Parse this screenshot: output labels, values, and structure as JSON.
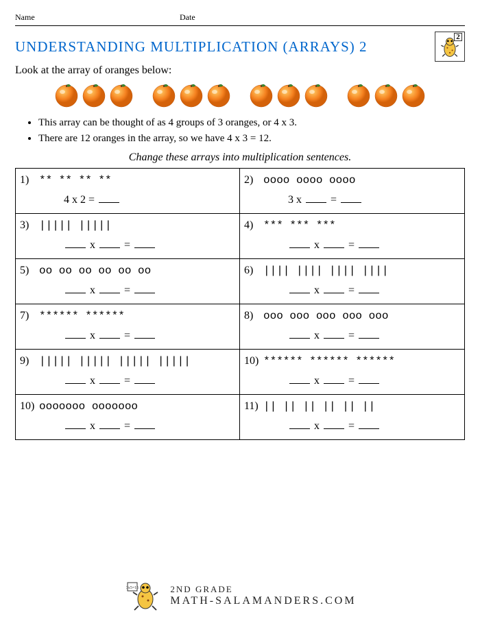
{
  "header": {
    "name_label": "Name",
    "date_label": "Date"
  },
  "title": "UNDERSTANDING MULTIPLICATION (ARRAYS) 2",
  "grade_badge": {
    "number": "2"
  },
  "intro": "Look at the array of oranges below:",
  "orange_array": {
    "groups": 4,
    "per_group": 3,
    "fill_color": "#f58220",
    "highlight_color": "#ffcc66",
    "leaf_color": "#3a8a2e"
  },
  "bullets": [
    "This array can be thought of as 4 groups of 3 oranges, or 4 x 3.",
    "There are 12 oranges in the array, so we have 4 x 3 = 12."
  ],
  "instruction": "Change these arrays into multiplication sentences.",
  "problems": [
    {
      "n": "1)",
      "array": "**   **   **   **",
      "eq": [
        "4",
        " x ",
        "2",
        " = ",
        "___"
      ]
    },
    {
      "n": "2)",
      "array": "oooo   oooo   oooo",
      "eq": [
        "3",
        " x ",
        "___",
        " = ",
        "___"
      ]
    },
    {
      "n": "3)",
      "array": "|||||   |||||",
      "eq": [
        "___",
        " x ",
        "___",
        " = ",
        "___"
      ]
    },
    {
      "n": "4)",
      "array": "***   ***   ***",
      "eq": [
        "___",
        " x ",
        "___",
        " = ",
        "___"
      ]
    },
    {
      "n": "5)",
      "array": "oo  oo  oo  oo  oo  oo",
      "eq": [
        "___",
        " x ",
        "___",
        " = ",
        "___"
      ]
    },
    {
      "n": "6)",
      "array": "||||  ||||  ||||  ||||",
      "eq": [
        "___",
        " x ",
        "___",
        " = ",
        "___"
      ]
    },
    {
      "n": "7)",
      "array": "******   ******",
      "eq": [
        "___",
        " x ",
        "___",
        " = ",
        "___"
      ]
    },
    {
      "n": "8)",
      "array": "ooo  ooo  ooo  ooo  ooo",
      "eq": [
        "___",
        " x ",
        "___",
        " = ",
        "___"
      ]
    },
    {
      "n": "9)",
      "array": "|||||  |||||  |||||  |||||",
      "eq": [
        "___",
        " x ",
        "___",
        " = ",
        "___"
      ]
    },
    {
      "n": "10)",
      "array": "******  ******  ******",
      "eq": [
        "___",
        " x ",
        "___",
        " = ",
        "___"
      ]
    },
    {
      "n": "10)",
      "array": "ooooooo   ooooooo",
      "eq": [
        "___",
        " x ",
        "___",
        " = ",
        "___"
      ]
    },
    {
      "n": "11)",
      "array": "||  ||  ||  ||  ||  ||",
      "eq": [
        "___",
        " x ",
        "___",
        " = ",
        "___"
      ]
    }
  ],
  "footer": {
    "line1": "2ND GRADE",
    "line2": "MATH-SALAMANDERS.COM"
  },
  "colors": {
    "title": "#0066cc",
    "text": "#000000",
    "border": "#000000"
  }
}
